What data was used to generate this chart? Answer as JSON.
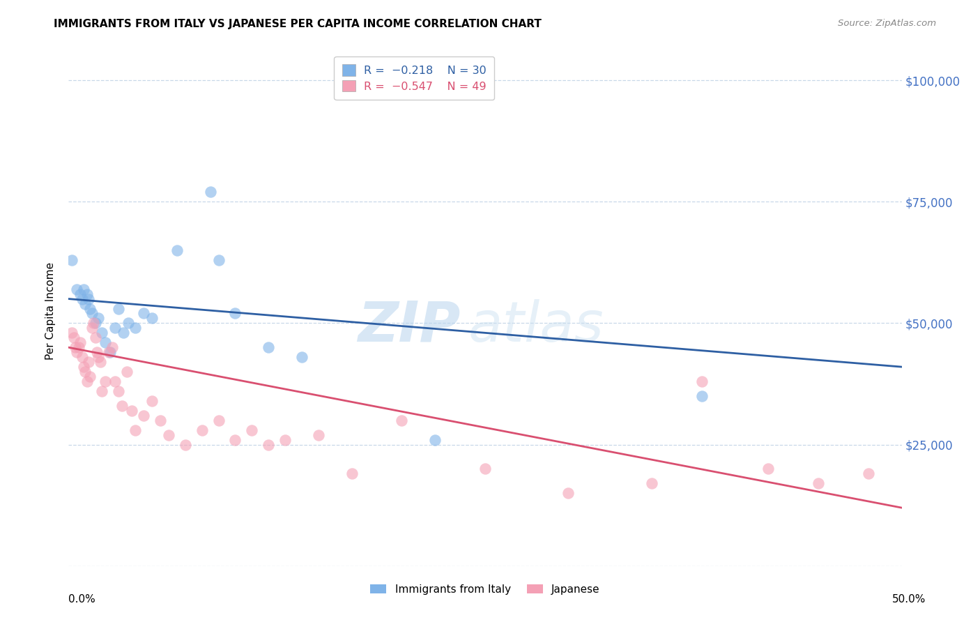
{
  "title": "IMMIGRANTS FROM ITALY VS JAPANESE PER CAPITA INCOME CORRELATION CHART",
  "source": "Source: ZipAtlas.com",
  "ylabel": "Per Capita Income",
  "yticks": [
    0,
    25000,
    50000,
    75000,
    100000
  ],
  "ytick_labels": [
    "",
    "$25,000",
    "$50,000",
    "$75,000",
    "$100,000"
  ],
  "xlim": [
    0.0,
    0.5
  ],
  "ylim": [
    0,
    105000
  ],
  "legend_label1": "Immigrants from Italy",
  "legend_label2": "Japanese",
  "blue_color": "#7fb3e8",
  "pink_color": "#f4a0b5",
  "blue_line_color": "#2e5fa3",
  "pink_line_color": "#d94f70",
  "axis_label_color": "#4472c4",
  "watermark_color": "#daeaf7",
  "italy_x": [
    0.002,
    0.005,
    0.007,
    0.008,
    0.009,
    0.01,
    0.011,
    0.012,
    0.013,
    0.014,
    0.016,
    0.018,
    0.02,
    0.022,
    0.025,
    0.028,
    0.03,
    0.033,
    0.036,
    0.04,
    0.045,
    0.05,
    0.065,
    0.085,
    0.09,
    0.1,
    0.12,
    0.14,
    0.22,
    0.38
  ],
  "italy_y": [
    63000,
    57000,
    56000,
    55000,
    57000,
    54000,
    56000,
    55000,
    53000,
    52000,
    50000,
    51000,
    48000,
    46000,
    44000,
    49000,
    53000,
    48000,
    50000,
    49000,
    52000,
    51000,
    65000,
    77000,
    63000,
    52000,
    45000,
    43000,
    26000,
    35000
  ],
  "japan_x": [
    0.002,
    0.003,
    0.004,
    0.005,
    0.006,
    0.007,
    0.008,
    0.009,
    0.01,
    0.011,
    0.012,
    0.013,
    0.014,
    0.015,
    0.016,
    0.017,
    0.018,
    0.019,
    0.02,
    0.022,
    0.024,
    0.026,
    0.028,
    0.03,
    0.032,
    0.035,
    0.038,
    0.04,
    0.045,
    0.05,
    0.055,
    0.06,
    0.07,
    0.08,
    0.09,
    0.1,
    0.11,
    0.12,
    0.13,
    0.15,
    0.17,
    0.2,
    0.25,
    0.3,
    0.35,
    0.38,
    0.42,
    0.45,
    0.48
  ],
  "japan_y": [
    48000,
    47000,
    45000,
    44000,
    45000,
    46000,
    43000,
    41000,
    40000,
    38000,
    42000,
    39000,
    49000,
    50000,
    47000,
    44000,
    43000,
    42000,
    36000,
    38000,
    44000,
    45000,
    38000,
    36000,
    33000,
    40000,
    32000,
    28000,
    31000,
    34000,
    30000,
    27000,
    25000,
    28000,
    30000,
    26000,
    28000,
    25000,
    26000,
    27000,
    19000,
    30000,
    20000,
    15000,
    17000,
    38000,
    20000,
    17000,
    19000
  ],
  "italy_line_x0": 0.0,
  "italy_line_y0": 55000,
  "italy_line_x1": 0.5,
  "italy_line_y1": 41000,
  "japan_line_x0": 0.0,
  "japan_line_y0": 45000,
  "japan_line_x1": 0.5,
  "japan_line_y1": 12000
}
